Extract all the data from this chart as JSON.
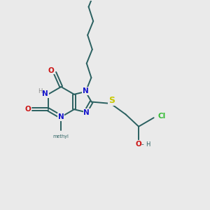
{
  "bg_color": "#eaeaea",
  "bond_color": "#2a6060",
  "n_color": "#1515cc",
  "o_color": "#cc1515",
  "s_color": "#c8c800",
  "cl_color": "#33bb33",
  "h_color": "#888888",
  "lw": 1.4,
  "fs": 7.5,
  "xlim": [
    0,
    10
  ],
  "ylim": [
    0,
    10
  ],
  "figsize": [
    3.0,
    3.0
  ],
  "dpi": 100
}
